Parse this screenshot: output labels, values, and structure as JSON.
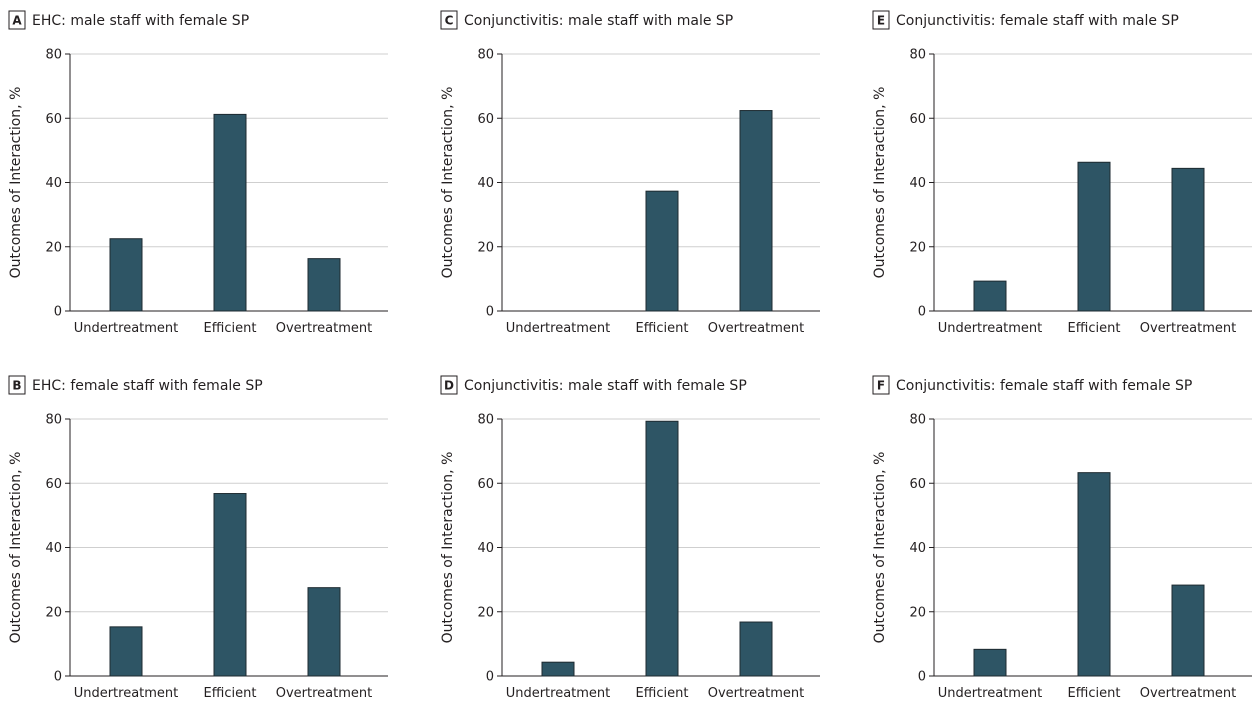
{
  "chart_data": [
    {
      "type": "bar",
      "panel": "A",
      "title": "EHC: male staff with female SP",
      "categories": [
        "Undertreatment",
        "Efficient",
        "Overtreatment"
      ],
      "values": [
        22.5,
        61.2,
        16.3
      ],
      "ylabel": "Outcomes of Interaction, %",
      "ylim": [
        0,
        80
      ],
      "yticks": [
        0,
        20,
        40,
        60,
        80
      ],
      "grid": true
    },
    {
      "type": "bar",
      "panel": "B",
      "title": "EHC: female staff with female SP",
      "categories": [
        "Undertreatment",
        "Efficient",
        "Overtreatment"
      ],
      "values": [
        15.3,
        56.8,
        27.5
      ],
      "ylabel": "Outcomes of Interaction, %",
      "ylim": [
        0,
        80
      ],
      "yticks": [
        0,
        20,
        40,
        60,
        80
      ],
      "grid": true
    },
    {
      "type": "bar",
      "panel": "C",
      "title": "Conjunctivitis: male staff with male SP",
      "categories": [
        "Undertreatment",
        "Efficient",
        "Overtreatment"
      ],
      "values": [
        0,
        37.3,
        62.4
      ],
      "ylabel": "Outcomes of Interaction, %",
      "ylim": [
        0,
        80
      ],
      "yticks": [
        0,
        20,
        40,
        60,
        80
      ],
      "grid": true
    },
    {
      "type": "bar",
      "panel": "D",
      "title": "Conjunctivitis: male staff with female SP",
      "categories": [
        "Undertreatment",
        "Efficient",
        "Overtreatment"
      ],
      "values": [
        4.3,
        79.3,
        16.8
      ],
      "ylabel": "Outcomes of Interaction, %",
      "ylim": [
        0,
        80
      ],
      "yticks": [
        0,
        20,
        40,
        60,
        80
      ],
      "grid": true
    },
    {
      "type": "bar",
      "panel": "E",
      "title": "Conjunctivitis: female staff with male SP",
      "categories": [
        "Undertreatment",
        "Efficient",
        "Overtreatment"
      ],
      "values": [
        9.3,
        46.3,
        44.4
      ],
      "ylabel": "Outcomes of Interaction, %",
      "ylim": [
        0,
        80
      ],
      "yticks": [
        0,
        20,
        40,
        60,
        80
      ],
      "grid": true
    },
    {
      "type": "bar",
      "panel": "F",
      "title": "Conjunctivitis: female staff with female SP",
      "categories": [
        "Undertreatment",
        "Efficient",
        "Overtreatment"
      ],
      "values": [
        8.3,
        63.3,
        28.3
      ],
      "ylabel": "Outcomes of Interaction, %",
      "ylim": [
        0,
        80
      ],
      "yticks": [
        0,
        20,
        40,
        60,
        80
      ],
      "grid": true
    }
  ],
  "colors": {
    "bar_fill": "#2e5565",
    "bar_stroke": "#1d2a30",
    "grid": "#cfcfcf",
    "axis": "#231f20",
    "text": "#231f20"
  }
}
